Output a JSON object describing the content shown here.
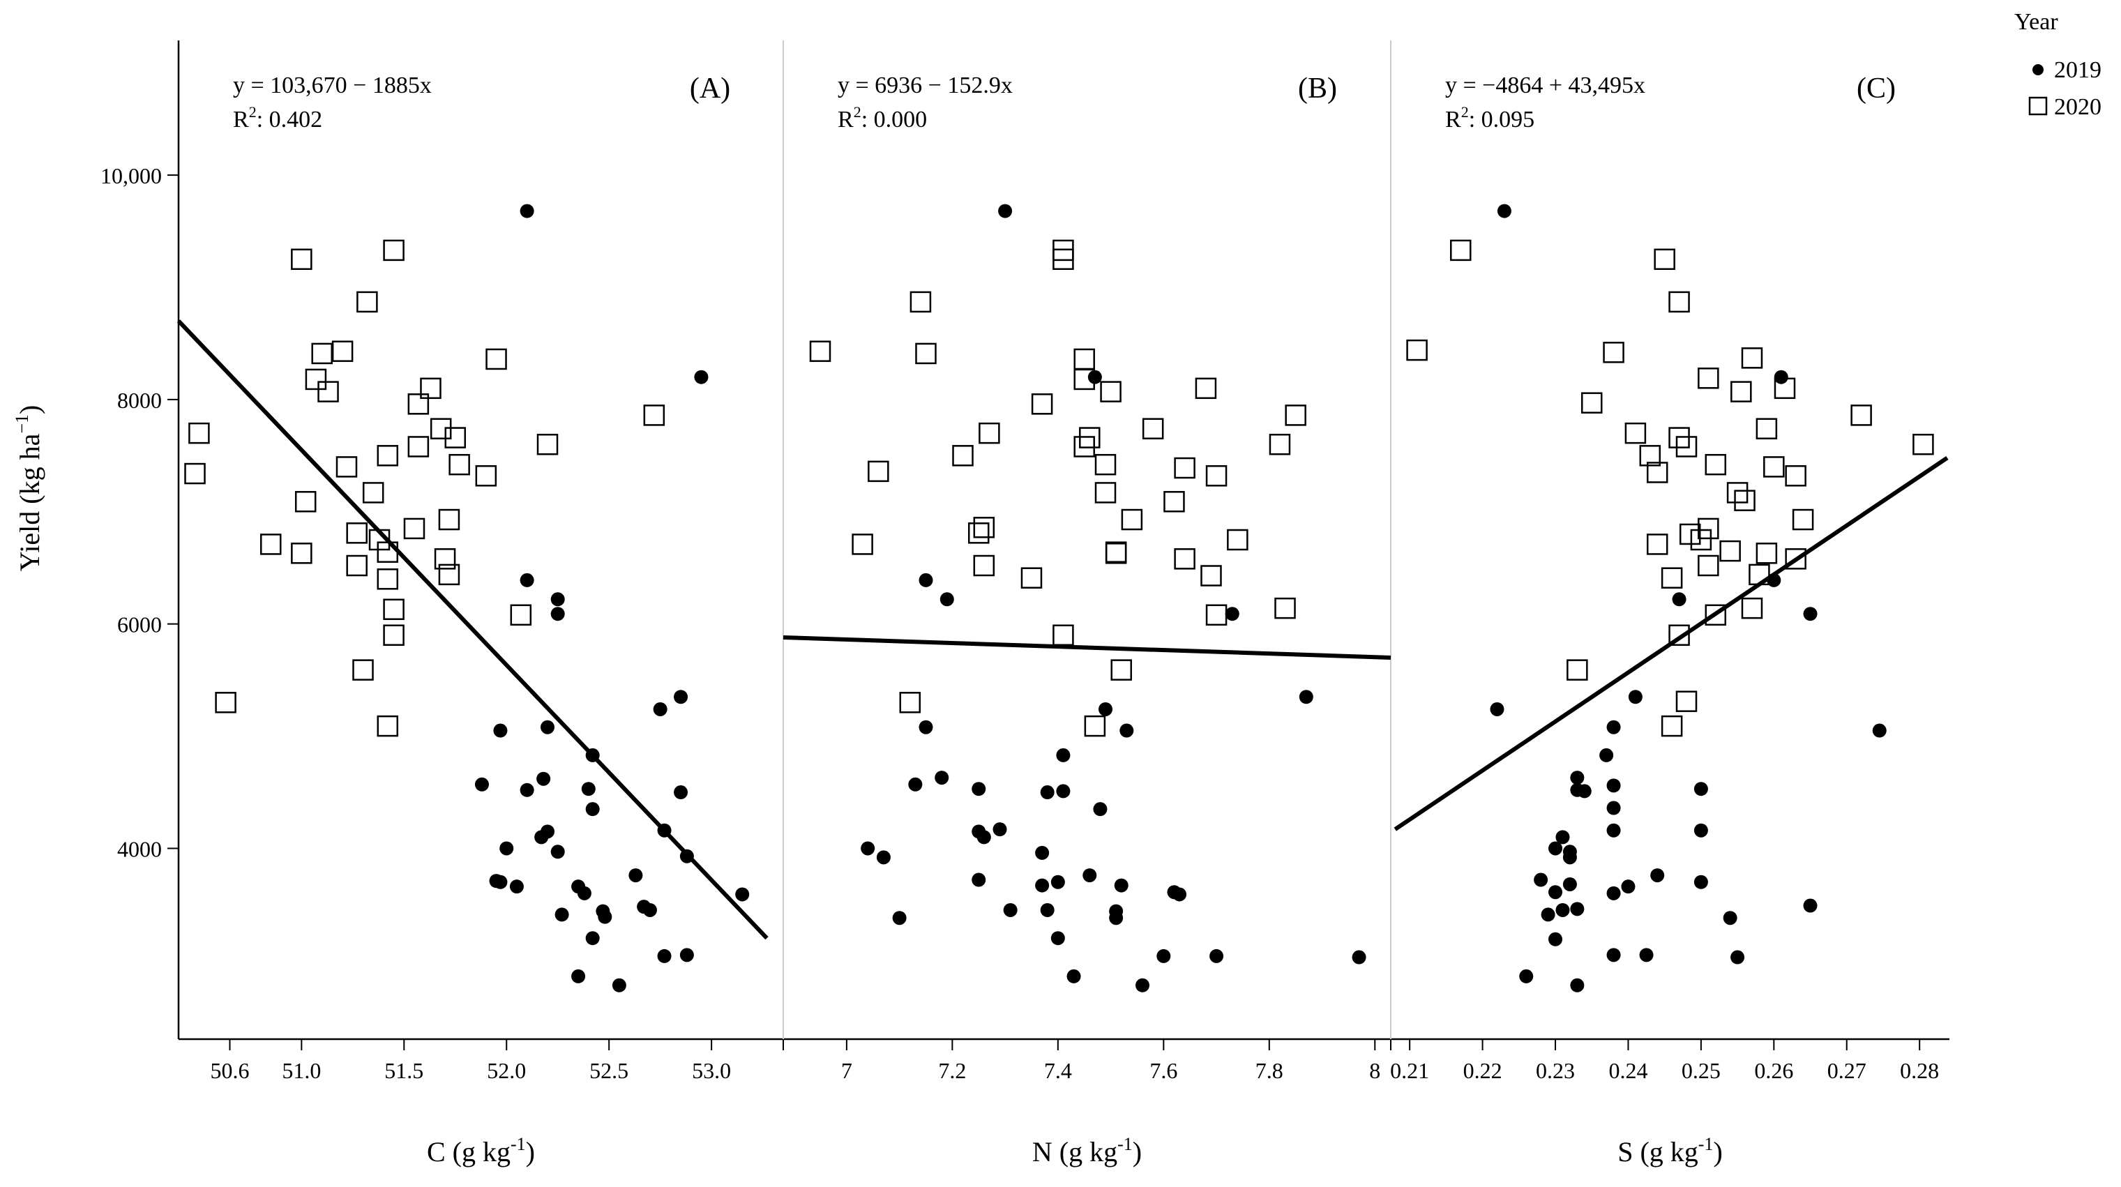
{
  "y_axis": {
    "label": "Yield (kg ha",
    "label_sup": "−1",
    "label_close": ")",
    "ylim": [
      2300,
      11200
    ],
    "ticks": [
      4000,
      6000,
      8000,
      10000
    ],
    "tick_labels": [
      "4000",
      "6000",
      "8000",
      "10,000"
    ]
  },
  "legend": {
    "title": "Year",
    "items": [
      {
        "label": "2019",
        "marker": "filled-circle"
      },
      {
        "label": "2020",
        "marker": "open-square"
      }
    ]
  },
  "chart_data": [
    {
      "type": "scatter",
      "panel_label": "(A)",
      "equation": "y = 103,670 − 1885x",
      "r2_prefix": "R",
      "r2_sup": "2",
      "r2_value": ": 0.402",
      "xlabel": "C (g kg",
      "xlabel_sup": "-1",
      "xlabel_close": ")",
      "xlim": [
        50.4,
        53.35
      ],
      "xticks": [
        50.65,
        51.0,
        51.5,
        52.0,
        52.5,
        53.0
      ],
      "xtick_labels": [
        "50.6",
        "51.0",
        "51.5",
        "52.0",
        "52.5",
        "53.0"
      ],
      "fit_line": {
        "x": [
          50.4,
          53.27
        ],
        "y": [
          8700,
          3200
        ]
      },
      "series": [
        {
          "name": "2019",
          "points": [
            [
              52.1,
              9680
            ],
            [
              52.95,
              8200
            ],
            [
              52.1,
              6390
            ],
            [
              52.25,
              6220
            ],
            [
              52.25,
              6090
            ],
            [
              51.97,
              5050
            ],
            [
              52.2,
              5080
            ],
            [
              52.42,
              4830
            ],
            [
              52.75,
              5240
            ],
            [
              52.85,
              5350
            ],
            [
              51.88,
              4570
            ],
            [
              52.1,
              4520
            ],
            [
              52.18,
              4620
            ],
            [
              52.4,
              4530
            ],
            [
              52.42,
              4350
            ],
            [
              52.85,
              4500
            ],
            [
              52.2,
              4150
            ],
            [
              52.17,
              4100
            ],
            [
              52.25,
              3970
            ],
            [
              52.0,
              4000
            ],
            [
              52.77,
              4160
            ],
            [
              52.88,
              3930
            ],
            [
              51.95,
              3710
            ],
            [
              51.97,
              3700
            ],
            [
              52.05,
              3660
            ],
            [
              52.35,
              3660
            ],
            [
              52.38,
              3600
            ],
            [
              52.63,
              3760
            ],
            [
              52.47,
              3440
            ],
            [
              52.48,
              3390
            ],
            [
              52.67,
              3480
            ],
            [
              52.7,
              3450
            ],
            [
              52.27,
              3410
            ],
            [
              53.15,
              3590
            ],
            [
              52.42,
              3200
            ],
            [
              52.77,
              3040
            ],
            [
              52.88,
              3050
            ],
            [
              52.35,
              2860
            ],
            [
              52.55,
              2780
            ]
          ]
        },
        {
          "name": "2020",
          "points": [
            [
              51.45,
              9330
            ],
            [
              51.0,
              9250
            ],
            [
              51.32,
              8870
            ],
            [
              51.1,
              8410
            ],
            [
              51.2,
              8430
            ],
            [
              51.07,
              8180
            ],
            [
              51.13,
              8070
            ],
            [
              51.95,
              8360
            ],
            [
              51.63,
              8100
            ],
            [
              52.72,
              7860
            ],
            [
              50.5,
              7700
            ],
            [
              51.57,
              7960
            ],
            [
              51.68,
              7740
            ],
            [
              51.75,
              7660
            ],
            [
              51.57,
              7580
            ],
            [
              51.42,
              7500
            ],
            [
              52.2,
              7600
            ],
            [
              51.22,
              7400
            ],
            [
              51.77,
              7420
            ],
            [
              51.9,
              7320
            ],
            [
              50.48,
              7340
            ],
            [
              51.35,
              7170
            ],
            [
              51.02,
              7090
            ],
            [
              51.72,
              6930
            ],
            [
              51.55,
              6850
            ],
            [
              51.27,
              6810
            ],
            [
              51.38,
              6750
            ],
            [
              51.42,
              6640
            ],
            [
              50.85,
              6710
            ],
            [
              51.0,
              6630
            ],
            [
              51.7,
              6580
            ],
            [
              51.27,
              6520
            ],
            [
              51.72,
              6440
            ],
            [
              51.42,
              6400
            ],
            [
              51.45,
              6130
            ],
            [
              52.07,
              6080
            ],
            [
              51.45,
              5900
            ],
            [
              51.3,
              5590
            ],
            [
              50.63,
              5300
            ],
            [
              51.42,
              5090
            ]
          ]
        }
      ]
    },
    {
      "type": "scatter",
      "panel_label": "(B)",
      "equation": "y = 6936 − 152.9x",
      "r2_prefix": "R",
      "r2_sup": "2",
      "r2_value": ": 0.000",
      "xlabel": "N (g kg",
      "xlabel_sup": "-1",
      "xlabel_close": ")",
      "xlim": [
        6.88,
        8.03
      ],
      "xticks": [
        7.0,
        7.2,
        7.4,
        7.6,
        7.8,
        8.0
      ],
      "xtick_labels": [
        "7",
        "7.2",
        "7.4",
        "7.6",
        "7.8",
        "8"
      ],
      "fit_line": {
        "x": [
          6.88,
          8.03
        ],
        "y": [
          5880,
          5700
        ]
      },
      "series": [
        {
          "name": "2019",
          "points": [
            [
              7.3,
              9680
            ],
            [
              7.47,
              8200
            ],
            [
              7.15,
              6390
            ],
            [
              7.19,
              6220
            ],
            [
              7.73,
              6090
            ],
            [
              7.87,
              5350
            ],
            [
              7.49,
              5240
            ],
            [
              7.15,
              5080
            ],
            [
              7.53,
              5050
            ],
            [
              7.41,
              4830
            ],
            [
              7.18,
              4630
            ],
            [
              7.13,
              4570
            ],
            [
              7.25,
              4530
            ],
            [
              7.38,
              4500
            ],
            [
              7.41,
              4510
            ],
            [
              7.48,
              4350
            ],
            [
              7.25,
              4150
            ],
            [
              7.26,
              4100
            ],
            [
              7.29,
              4170
            ],
            [
              7.07,
              3920
            ],
            [
              7.37,
              3960
            ],
            [
              7.04,
              4000
            ],
            [
              7.25,
              3720
            ],
            [
              7.37,
              3670
            ],
            [
              7.4,
              3700
            ],
            [
              7.46,
              3760
            ],
            [
              7.52,
              3670
            ],
            [
              7.62,
              3610
            ],
            [
              7.63,
              3590
            ],
            [
              7.31,
              3450
            ],
            [
              7.38,
              3450
            ],
            [
              7.51,
              3440
            ],
            [
              7.51,
              3380
            ],
            [
              7.1,
              3380
            ],
            [
              7.4,
              3200
            ],
            [
              7.6,
              3040
            ],
            [
              7.7,
              3040
            ],
            [
              7.97,
              3030
            ],
            [
              7.43,
              2860
            ],
            [
              7.56,
              2780
            ]
          ]
        },
        {
          "name": "2020",
          "points": [
            [
              7.41,
              9330
            ],
            [
              7.41,
              9250
            ],
            [
              7.14,
              8870
            ],
            [
              6.95,
              8430
            ],
            [
              7.15,
              8410
            ],
            [
              7.45,
              8360
            ],
            [
              7.45,
              8180
            ],
            [
              7.5,
              8070
            ],
            [
              7.68,
              8100
            ],
            [
              7.85,
              7860
            ],
            [
              7.37,
              7960
            ],
            [
              7.58,
              7740
            ],
            [
              7.27,
              7700
            ],
            [
              7.46,
              7660
            ],
            [
              7.45,
              7580
            ],
            [
              7.82,
              7600
            ],
            [
              7.22,
              7500
            ],
            [
              7.49,
              7420
            ],
            [
              7.64,
              7390
            ],
            [
              7.06,
              7360
            ],
            [
              7.7,
              7320
            ],
            [
              7.49,
              7170
            ],
            [
              7.62,
              7090
            ],
            [
              7.54,
              6930
            ],
            [
              7.26,
              6860
            ],
            [
              7.25,
              6810
            ],
            [
              7.74,
              6750
            ],
            [
              7.03,
              6710
            ],
            [
              7.51,
              6640
            ],
            [
              7.51,
              6630
            ],
            [
              7.64,
              6580
            ],
            [
              7.26,
              6520
            ],
            [
              7.69,
              6430
            ],
            [
              7.35,
              6410
            ],
            [
              7.83,
              6140
            ],
            [
              7.7,
              6080
            ],
            [
              7.41,
              5900
            ],
            [
              7.52,
              5590
            ],
            [
              7.12,
              5300
            ],
            [
              7.47,
              5090
            ]
          ]
        }
      ]
    },
    {
      "type": "scatter",
      "panel_label": "(C)",
      "equation": "y = −4864 + 43,495x",
      "r2_prefix": "R",
      "r2_sup": "2",
      "r2_value": ": 0.095",
      "xlabel": "S (g kg",
      "xlabel_sup": "-1",
      "xlabel_close": ")",
      "xlim": [
        0.2074,
        0.2841
      ],
      "xticks": [
        0.21,
        0.22,
        0.23,
        0.24,
        0.25,
        0.26,
        0.27,
        0.28
      ],
      "xtick_labels": [
        "0.21",
        "0.22",
        "0.23",
        "0.24",
        "0.25",
        "0.26",
        "0.27",
        "0.28"
      ],
      "fit_line": {
        "x": [
          0.208,
          0.2838
        ],
        "y": [
          4170,
          7480
        ]
      },
      "series": [
        {
          "name": "2019",
          "points": [
            [
              0.223,
              9680
            ],
            [
              0.261,
              8200
            ],
            [
              0.26,
              6390
            ],
            [
              0.247,
              6220
            ],
            [
              0.265,
              6090
            ],
            [
              0.241,
              5350
            ],
            [
              0.222,
              5240
            ],
            [
              0.2745,
              5050
            ],
            [
              0.238,
              5080
            ],
            [
              0.237,
              4830
            ],
            [
              0.233,
              4630
            ],
            [
              0.234,
              4510
            ],
            [
              0.233,
              4520
            ],
            [
              0.238,
              4560
            ],
            [
              0.25,
              4530
            ],
            [
              0.238,
              4360
            ],
            [
              0.25,
              4160
            ],
            [
              0.238,
              4160
            ],
            [
              0.231,
              4100
            ],
            [
              0.23,
              4000
            ],
            [
              0.232,
              3970
            ],
            [
              0.232,
              3920
            ],
            [
              0.228,
              3720
            ],
            [
              0.244,
              3760
            ],
            [
              0.25,
              3700
            ],
            [
              0.232,
              3680
            ],
            [
              0.24,
              3660
            ],
            [
              0.238,
              3600
            ],
            [
              0.23,
              3610
            ],
            [
              0.229,
              3410
            ],
            [
              0.231,
              3450
            ],
            [
              0.233,
              3460
            ],
            [
              0.254,
              3380
            ],
            [
              0.265,
              3490
            ],
            [
              0.23,
              3190
            ],
            [
              0.238,
              3050
            ],
            [
              0.2425,
              3050
            ],
            [
              0.255,
              3030
            ],
            [
              0.226,
              2860
            ],
            [
              0.233,
              2780
            ]
          ]
        },
        {
          "name": "2020",
          "points": [
            [
              0.217,
              9330
            ],
            [
              0.245,
              9250
            ],
            [
              0.247,
              8870
            ],
            [
              0.211,
              8440
            ],
            [
              0.238,
              8420
            ],
            [
              0.257,
              8370
            ],
            [
              0.251,
              8190
            ],
            [
              0.2555,
              8070
            ],
            [
              0.2615,
              8100
            ],
            [
              0.272,
              7860
            ],
            [
              0.235,
              7970
            ],
            [
              0.259,
              7740
            ],
            [
              0.241,
              7700
            ],
            [
              0.247,
              7660
            ],
            [
              0.248,
              7580
            ],
            [
              0.2805,
              7600
            ],
            [
              0.243,
              7500
            ],
            [
              0.252,
              7420
            ],
            [
              0.244,
              7350
            ],
            [
              0.26,
              7400
            ],
            [
              0.263,
              7320
            ],
            [
              0.255,
              7170
            ],
            [
              0.256,
              7100
            ],
            [
              0.264,
              6930
            ],
            [
              0.251,
              6850
            ],
            [
              0.2485,
              6800
            ],
            [
              0.25,
              6750
            ],
            [
              0.244,
              6710
            ],
            [
              0.254,
              6650
            ],
            [
              0.259,
              6630
            ],
            [
              0.263,
              6580
            ],
            [
              0.251,
              6520
            ],
            [
              0.258,
              6440
            ],
            [
              0.246,
              6410
            ],
            [
              0.257,
              6140
            ],
            [
              0.252,
              6080
            ],
            [
              0.247,
              5900
            ],
            [
              0.233,
              5590
            ],
            [
              0.248,
              5310
            ],
            [
              0.246,
              5090
            ]
          ]
        }
      ]
    }
  ]
}
